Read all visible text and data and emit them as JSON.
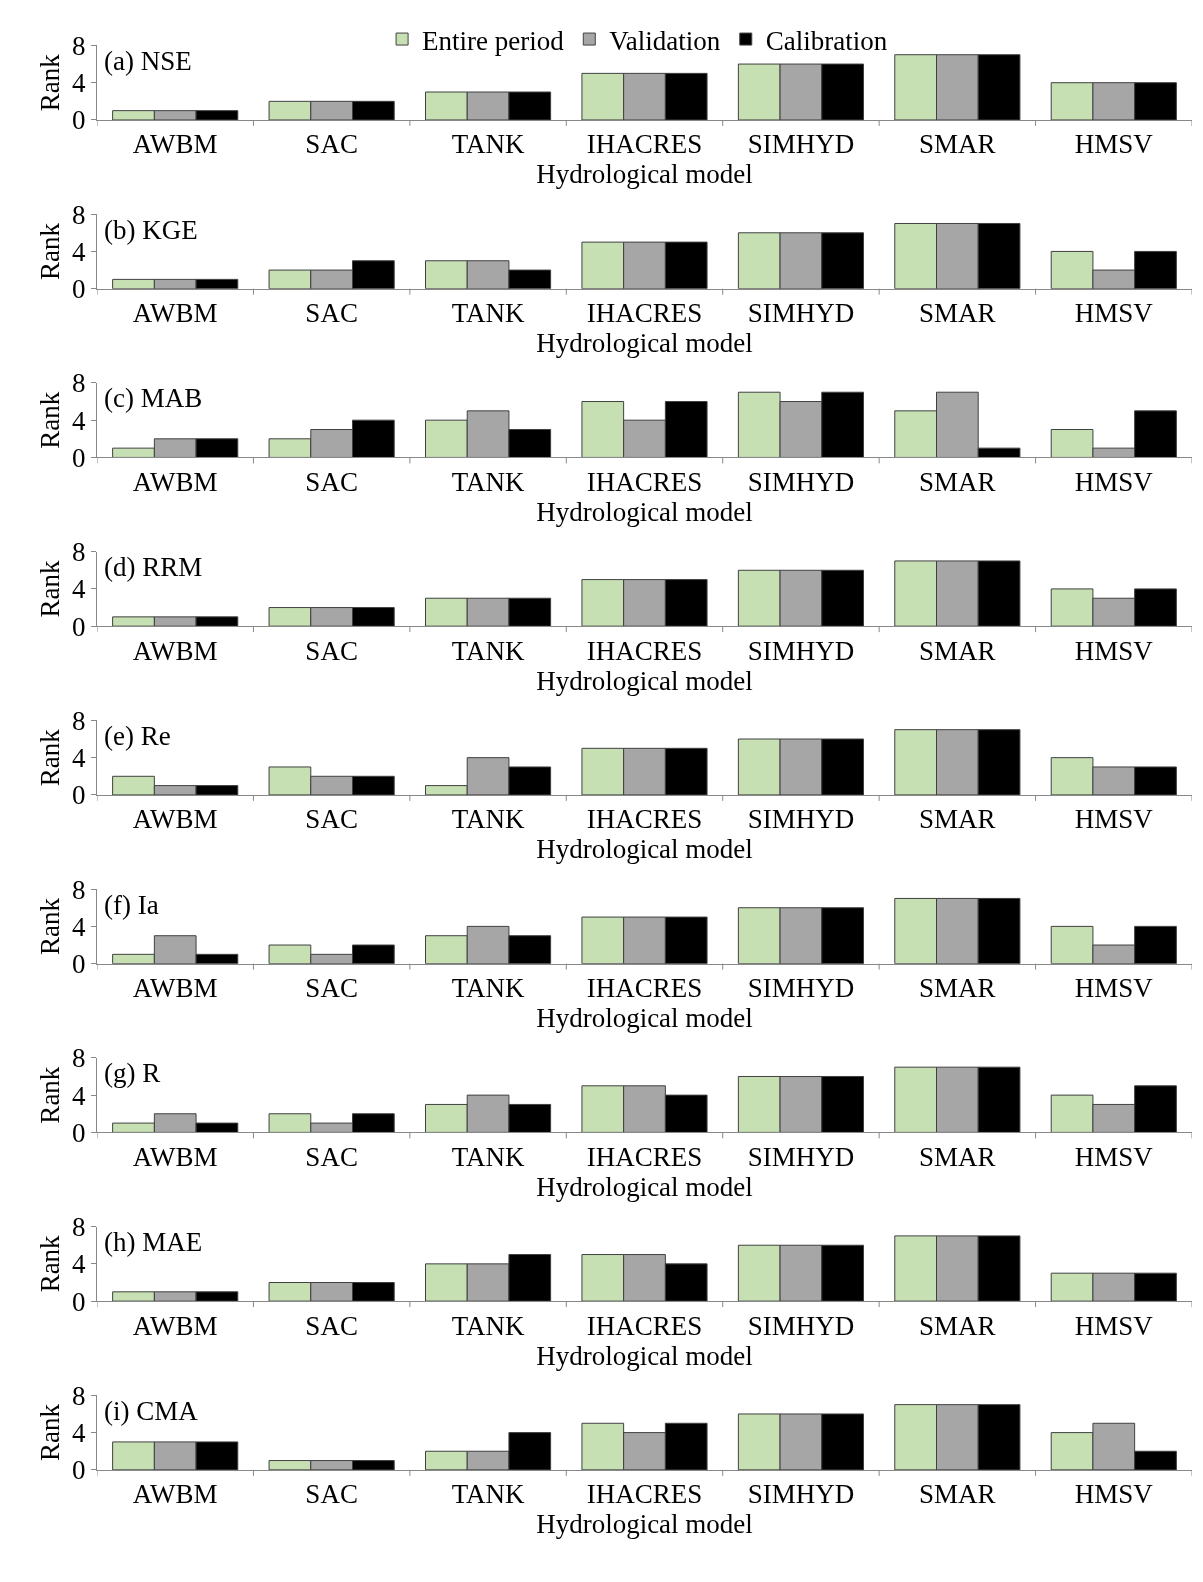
{
  "chart_data": [
    {
      "type": "bar",
      "title": "(a) NSE",
      "xlabel": "Hydrological model",
      "ylabel": "Rank",
      "categories": [
        "AWBM",
        "SAC",
        "TANK",
        "IHACRES",
        "SIMHYD",
        "SMAR",
        "HMSV"
      ],
      "ylim": [
        0,
        8
      ],
      "yticks": [
        0,
        4,
        8
      ],
      "legend": "top",
      "series": [
        {
          "name": "Entire period",
          "color": "#c6e0b4",
          "values": [
            1,
            2,
            3,
            5,
            6,
            7,
            4
          ]
        },
        {
          "name": "Validation",
          "color": "#a6a6a6",
          "values": [
            1,
            2,
            3,
            5,
            6,
            7,
            4
          ]
        },
        {
          "name": "Calibration",
          "color": "#000000",
          "values": [
            1,
            2,
            3,
            5,
            6,
            7,
            4
          ]
        }
      ]
    },
    {
      "type": "bar",
      "title": "(b) KGE",
      "xlabel": "Hydrological model",
      "ylabel": "Rank",
      "categories": [
        "AWBM",
        "SAC",
        "TANK",
        "IHACRES",
        "SIMHYD",
        "SMAR",
        "HMSV"
      ],
      "ylim": [
        0,
        8
      ],
      "yticks": [
        0,
        4,
        8
      ],
      "series": [
        {
          "color": "#c6e0b4",
          "values": [
            1,
            2,
            3,
            5,
            6,
            7,
            4
          ]
        },
        {
          "color": "#a6a6a6",
          "values": [
            1,
            2,
            3,
            5,
            6,
            7,
            2
          ]
        },
        {
          "color": "#000000",
          "values": [
            1,
            3,
            2,
            5,
            6,
            7,
            4
          ]
        }
      ]
    },
    {
      "type": "bar",
      "title": "(c) MAB",
      "xlabel": "Hydrological model",
      "ylabel": "Rank",
      "categories": [
        "AWBM",
        "SAC",
        "TANK",
        "IHACRES",
        "SIMHYD",
        "SMAR",
        "HMSV"
      ],
      "ylim": [
        0,
        8
      ],
      "yticks": [
        0,
        4,
        8
      ],
      "series": [
        {
          "color": "#c6e0b4",
          "values": [
            1,
            2,
            4,
            6,
            7,
            5,
            3
          ]
        },
        {
          "color": "#a6a6a6",
          "values": [
            2,
            3,
            5,
            4,
            6,
            7,
            1
          ]
        },
        {
          "color": "#000000",
          "values": [
            2,
            4,
            3,
            6,
            7,
            1,
            5
          ]
        }
      ]
    },
    {
      "type": "bar",
      "title": "(d) RRM",
      "xlabel": "Hydrological model",
      "ylabel": "Rank",
      "categories": [
        "AWBM",
        "SAC",
        "TANK",
        "IHACRES",
        "SIMHYD",
        "SMAR",
        "HMSV"
      ],
      "ylim": [
        0,
        8
      ],
      "yticks": [
        0,
        4,
        8
      ],
      "series": [
        {
          "color": "#c6e0b4",
          "values": [
            1,
            2,
            3,
            5,
            6,
            7,
            4
          ]
        },
        {
          "color": "#a6a6a6",
          "values": [
            1,
            2,
            3,
            5,
            6,
            7,
            3
          ]
        },
        {
          "color": "#000000",
          "values": [
            1,
            2,
            3,
            5,
            6,
            7,
            4
          ]
        }
      ]
    },
    {
      "type": "bar",
      "title": "(e) Re",
      "xlabel": "Hydrological model",
      "ylabel": "Rank",
      "categories": [
        "AWBM",
        "SAC",
        "TANK",
        "IHACRES",
        "SIMHYD",
        "SMAR",
        "HMSV"
      ],
      "ylim": [
        0,
        8
      ],
      "yticks": [
        0,
        4,
        8
      ],
      "series": [
        {
          "color": "#c6e0b4",
          "values": [
            2,
            3,
            1,
            5,
            6,
            7,
            4
          ]
        },
        {
          "color": "#a6a6a6",
          "values": [
            1,
            2,
            4,
            5,
            6,
            7,
            3
          ]
        },
        {
          "color": "#000000",
          "values": [
            1,
            2,
            3,
            5,
            6,
            7,
            3
          ]
        }
      ]
    },
    {
      "type": "bar",
      "title": "(f) Ia",
      "xlabel": "Hydrological model",
      "ylabel": "Rank",
      "categories": [
        "AWBM",
        "SAC",
        "TANK",
        "IHACRES",
        "SIMHYD",
        "SMAR",
        "HMSV"
      ],
      "ylim": [
        0,
        8
      ],
      "yticks": [
        0,
        4,
        8
      ],
      "series": [
        {
          "color": "#c6e0b4",
          "values": [
            1,
            2,
            3,
            5,
            6,
            7,
            4
          ]
        },
        {
          "color": "#a6a6a6",
          "values": [
            3,
            1,
            4,
            5,
            6,
            7,
            2
          ]
        },
        {
          "color": "#000000",
          "values": [
            1,
            2,
            3,
            5,
            6,
            7,
            4
          ]
        }
      ]
    },
    {
      "type": "bar",
      "title": "(g) R",
      "xlabel": "Hydrological model",
      "ylabel": "Rank",
      "categories": [
        "AWBM",
        "SAC",
        "TANK",
        "IHACRES",
        "SIMHYD",
        "SMAR",
        "HMSV"
      ],
      "ylim": [
        0,
        8
      ],
      "yticks": [
        0,
        4,
        8
      ],
      "series": [
        {
          "color": "#c6e0b4",
          "values": [
            1,
            2,
            3,
            5,
            6,
            7,
            4
          ]
        },
        {
          "color": "#a6a6a6",
          "values": [
            2,
            1,
            4,
            5,
            6,
            7,
            3
          ]
        },
        {
          "color": "#000000",
          "values": [
            1,
            2,
            3,
            4,
            6,
            7,
            5
          ]
        }
      ]
    },
    {
      "type": "bar",
      "title": "(h) MAE",
      "xlabel": "Hydrological model",
      "ylabel": "Rank",
      "categories": [
        "AWBM",
        "SAC",
        "TANK",
        "IHACRES",
        "SIMHYD",
        "SMAR",
        "HMSV"
      ],
      "ylim": [
        0,
        8
      ],
      "yticks": [
        0,
        4,
        8
      ],
      "series": [
        {
          "color": "#c6e0b4",
          "values": [
            1,
            2,
            4,
            5,
            6,
            7,
            3
          ]
        },
        {
          "color": "#a6a6a6",
          "values": [
            1,
            2,
            4,
            5,
            6,
            7,
            3
          ]
        },
        {
          "color": "#000000",
          "values": [
            1,
            2,
            5,
            4,
            6,
            7,
            3
          ]
        }
      ]
    },
    {
      "type": "bar",
      "title": "(i) CMA",
      "xlabel": "Hydrological model",
      "ylabel": "Rank",
      "categories": [
        "AWBM",
        "SAC",
        "TANK",
        "IHACRES",
        "SIMHYD",
        "SMAR",
        "HMSV"
      ],
      "ylim": [
        0,
        8
      ],
      "yticks": [
        0,
        4,
        8
      ],
      "series": [
        {
          "color": "#c6e0b4",
          "values": [
            3,
            1,
            2,
            5,
            6,
            7,
            4
          ]
        },
        {
          "color": "#a6a6a6",
          "values": [
            3,
            1,
            2,
            4,
            6,
            7,
            5
          ]
        },
        {
          "color": "#000000",
          "values": [
            3,
            1,
            4,
            5,
            6,
            7,
            2
          ]
        }
      ]
    }
  ]
}
